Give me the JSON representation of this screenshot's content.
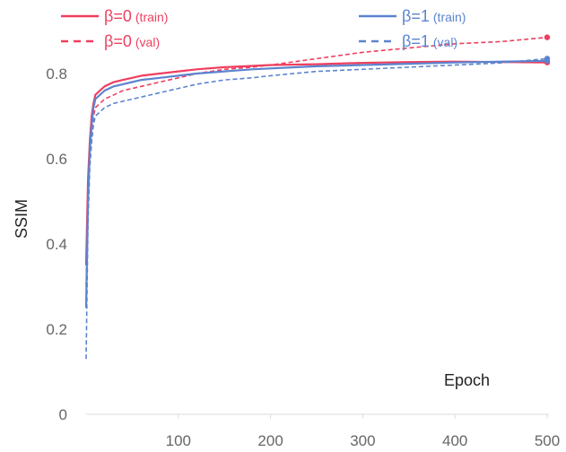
{
  "chart_data": {
    "type": "line",
    "xlabel": "Epoch",
    "ylabel": "SSIM",
    "xlim": [
      0,
      500
    ],
    "ylim": [
      0,
      0.92
    ],
    "xticks": [
      100,
      200,
      300,
      400,
      500
    ],
    "yticks": [
      0,
      0.2,
      0.4,
      0.6,
      0.8
    ],
    "yticklabels": [
      "0",
      "0.2",
      "0.4",
      "0.6",
      "0.8"
    ],
    "grid": false,
    "legend_position": "top",
    "series": [
      {
        "label_main": "β=0",
        "label_sub": "(train)",
        "color": "#ee3f5f",
        "dash": "solid",
        "x": [
          0,
          2,
          4,
          6,
          8,
          10,
          15,
          20,
          30,
          40,
          50,
          60,
          80,
          100,
          120,
          150,
          180,
          200,
          250,
          300,
          350,
          400,
          450,
          500
        ],
        "y": [
          0.35,
          0.55,
          0.64,
          0.7,
          0.73,
          0.75,
          0.76,
          0.77,
          0.78,
          0.785,
          0.79,
          0.795,
          0.8,
          0.805,
          0.81,
          0.815,
          0.818,
          0.82,
          0.822,
          0.825,
          0.827,
          0.828,
          0.827,
          0.826
        ]
      },
      {
        "label_main": "β=0",
        "label_sub": "(val)",
        "color": "#ee3f5f",
        "dash": "dashed",
        "x": [
          0,
          2,
          4,
          6,
          8,
          10,
          15,
          20,
          30,
          40,
          50,
          60,
          80,
          100,
          120,
          150,
          180,
          200,
          250,
          300,
          350,
          400,
          450,
          500
        ],
        "y": [
          0.3,
          0.5,
          0.6,
          0.66,
          0.7,
          0.72,
          0.73,
          0.74,
          0.75,
          0.76,
          0.765,
          0.77,
          0.78,
          0.79,
          0.8,
          0.81,
          0.815,
          0.82,
          0.835,
          0.85,
          0.86,
          0.87,
          0.875,
          0.885
        ]
      },
      {
        "label_main": "β=1",
        "label_sub": "(train)",
        "color": "#5b84cf",
        "dash": "solid",
        "x": [
          0,
          2,
          4,
          6,
          8,
          10,
          15,
          20,
          30,
          40,
          50,
          60,
          80,
          100,
          120,
          150,
          180,
          200,
          250,
          300,
          350,
          400,
          450,
          500
        ],
        "y": [
          0.25,
          0.5,
          0.62,
          0.68,
          0.72,
          0.74,
          0.75,
          0.76,
          0.77,
          0.775,
          0.78,
          0.785,
          0.79,
          0.795,
          0.8,
          0.805,
          0.81,
          0.812,
          0.817,
          0.82,
          0.823,
          0.826,
          0.828,
          0.83
        ]
      },
      {
        "label_main": "β=1",
        "label_sub": "(val)",
        "color": "#5b84cf",
        "dash": "dashed",
        "x": [
          0,
          2,
          4,
          6,
          8,
          10,
          15,
          20,
          30,
          40,
          50,
          60,
          80,
          100,
          120,
          150,
          180,
          200,
          250,
          300,
          350,
          400,
          450,
          500
        ],
        "y": [
          0.13,
          0.45,
          0.58,
          0.64,
          0.68,
          0.7,
          0.71,
          0.72,
          0.73,
          0.735,
          0.74,
          0.745,
          0.755,
          0.765,
          0.775,
          0.785,
          0.79,
          0.795,
          0.805,
          0.81,
          0.815,
          0.82,
          0.825,
          0.835
        ]
      }
    ]
  }
}
